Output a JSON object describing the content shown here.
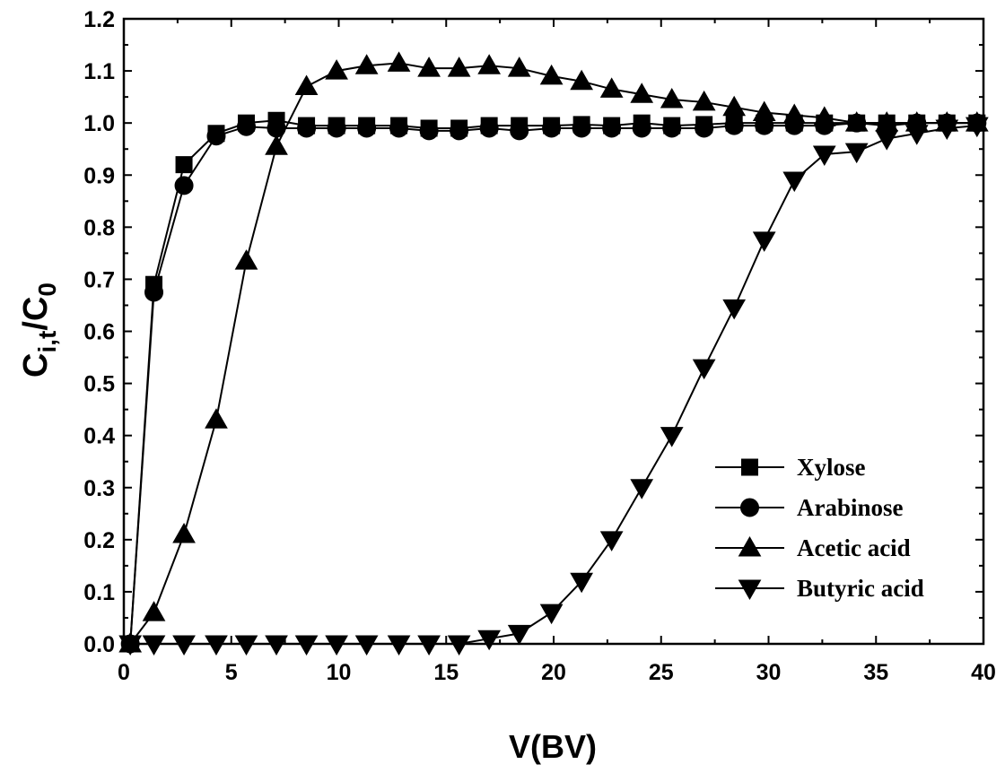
{
  "chart_data": {
    "type": "line",
    "xlabel": "V(BV)",
    "ylabel": {
      "main": "C",
      "sub": "i,t",
      "sep": "/C",
      "sub2": "0"
    },
    "xlim": [
      0,
      40
    ],
    "ylim": [
      0,
      1.2
    ],
    "xticks": [
      0,
      5,
      10,
      15,
      20,
      25,
      30,
      35,
      40
    ],
    "yticks": [
      0.0,
      0.1,
      0.2,
      0.3,
      0.4,
      0.5,
      0.6,
      0.7,
      0.8,
      0.9,
      1.0,
      1.1,
      1.2
    ],
    "xtick_labels": [
      "0",
      "5",
      "10",
      "15",
      "20",
      "25",
      "30",
      "35",
      "40"
    ],
    "ytick_labels": [
      "0.0",
      "0.1",
      "0.2",
      "0.3",
      "0.4",
      "0.5",
      "0.6",
      "0.7",
      "0.8",
      "0.9",
      "1.0",
      "1.1",
      "1.2"
    ],
    "legend_position": "lower-right",
    "grid": false,
    "series": [
      {
        "name": "Xylose",
        "marker": "square",
        "x": [
          0.3,
          1.4,
          2.8,
          4.3,
          5.7,
          7.1,
          8.5,
          9.9,
          11.3,
          12.8,
          14.2,
          15.6,
          17.0,
          18.4,
          19.9,
          21.3,
          22.7,
          24.1,
          25.5,
          27.0,
          28.4,
          29.8,
          31.2,
          32.6,
          34.1,
          35.5,
          36.9,
          38.3,
          39.7
        ],
        "y": [
          0.0,
          0.69,
          0.92,
          0.98,
          1.0,
          1.005,
          0.995,
          0.995,
          0.995,
          0.995,
          0.99,
          0.99,
          0.995,
          0.995,
          0.995,
          0.997,
          0.995,
          1.0,
          0.995,
          0.997,
          1.0,
          1.0,
          1.0,
          1.0,
          1.0,
          1.0,
          1.0,
          1.0,
          1.0
        ]
      },
      {
        "name": "Arabinose",
        "marker": "circle",
        "x": [
          0.3,
          1.4,
          2.8,
          4.3,
          5.7,
          7.1,
          8.5,
          9.9,
          11.3,
          12.8,
          14.2,
          15.6,
          17.0,
          18.4,
          19.9,
          21.3,
          22.7,
          24.1,
          25.5,
          27.0,
          28.4,
          29.8,
          31.2,
          32.6,
          34.1,
          35.5,
          36.9,
          38.3,
          39.7
        ],
        "y": [
          0.0,
          0.675,
          0.88,
          0.975,
          0.993,
          0.99,
          0.99,
          0.99,
          0.99,
          0.99,
          0.985,
          0.985,
          0.99,
          0.985,
          0.99,
          0.99,
          0.99,
          0.99,
          0.99,
          0.99,
          0.995,
          0.995,
          0.995,
          0.995,
          1.0,
          0.995,
          1.0,
          1.0,
          1.0
        ]
      },
      {
        "name": "Acetic acid",
        "marker": "triangle-up",
        "x": [
          0.3,
          1.4,
          2.8,
          4.3,
          5.7,
          7.1,
          8.5,
          9.9,
          11.3,
          12.8,
          14.2,
          15.6,
          17.0,
          18.4,
          19.9,
          21.3,
          22.7,
          24.1,
          25.5,
          27.0,
          28.4,
          29.8,
          31.2,
          32.6,
          34.1,
          35.5,
          36.9,
          38.3,
          39.7
        ],
        "y": [
          0.0,
          0.06,
          0.21,
          0.43,
          0.735,
          0.955,
          1.07,
          1.1,
          1.11,
          1.115,
          1.105,
          1.105,
          1.11,
          1.105,
          1.09,
          1.08,
          1.065,
          1.055,
          1.045,
          1.04,
          1.03,
          1.02,
          1.015,
          1.01,
          1.0,
          1.0,
          1.0,
          1.0,
          1.0
        ]
      },
      {
        "name": "Butyric acid",
        "marker": "triangle-down",
        "x": [
          0.3,
          1.4,
          2.8,
          4.3,
          5.7,
          7.1,
          8.5,
          9.9,
          11.3,
          12.8,
          14.2,
          15.6,
          17.0,
          18.4,
          19.9,
          21.3,
          22.7,
          24.1,
          25.5,
          27.0,
          28.4,
          29.8,
          31.2,
          32.6,
          34.1,
          35.5,
          36.9,
          38.3,
          39.7
        ],
        "y": [
          0.0,
          0.0,
          0.0,
          0.0,
          0.0,
          0.0,
          0.0,
          0.0,
          0.0,
          0.0,
          0.0,
          0.0,
          0.01,
          0.02,
          0.06,
          0.12,
          0.2,
          0.3,
          0.4,
          0.53,
          0.645,
          0.775,
          0.89,
          0.94,
          0.945,
          0.97,
          0.98,
          0.99,
          0.995
        ]
      }
    ]
  }
}
